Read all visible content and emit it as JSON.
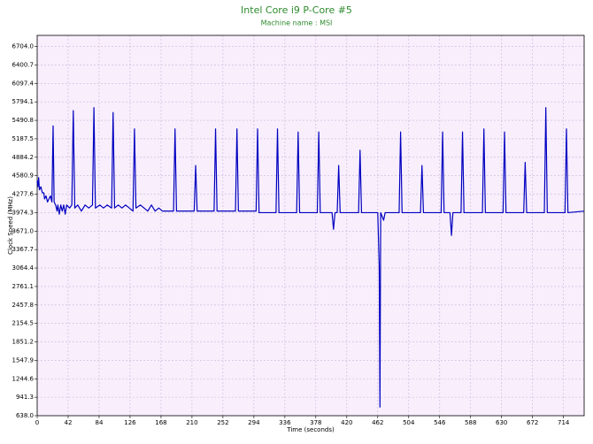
{
  "chart_data": {
    "type": "line",
    "title": "Intel Core i9 P-Core #5",
    "subtitle": "Machine name : MSI",
    "xlabel": "Time (seconds)",
    "ylabel": "Clock Speed (MHz)",
    "grid": true,
    "xlim": [
      0,
      742
    ],
    "ylim": [
      638,
      6887
    ],
    "xticks": [
      0,
      42,
      84,
      126,
      168,
      210,
      252,
      294,
      336,
      378,
      420,
      462,
      504,
      546,
      588,
      630,
      672,
      714
    ],
    "yticks": [
      {
        "value": 638,
        "label": "638.0"
      },
      941.3,
      1244.6,
      1547.9,
      1851.2,
      2154.5,
      2457.8,
      2761.1,
      3064.4,
      3367.7,
      {
        "value": 3671,
        "label": "3671.0"
      },
      3974.3,
      4277.6,
      4580.9,
      4884.2,
      5187.5,
      5490.8,
      5794.1,
      6097.4,
      6400.7,
      {
        "value": 6704,
        "label": "6704.0"
      }
    ],
    "x": [
      0,
      1,
      2,
      3,
      5,
      7,
      9,
      10,
      12,
      14,
      16,
      18,
      20,
      21.6,
      23,
      25,
      27,
      28,
      30,
      32,
      34,
      36,
      38,
      40,
      44,
      47,
      49,
      51,
      55,
      60,
      65,
      70,
      75,
      77,
      79,
      85,
      90,
      95,
      101,
      103,
      105,
      110,
      115,
      120,
      125,
      130,
      132,
      134,
      140,
      145,
      150,
      155,
      160,
      165,
      170,
      185,
      187,
      189,
      213,
      215,
      217,
      240,
      242,
      244,
      269,
      271,
      273,
      297,
      299,
      301,
      324,
      326,
      328,
      352,
      354,
      356,
      380,
      382,
      384,
      400,
      402,
      404,
      407,
      409,
      411,
      436,
      438,
      440,
      462,
      464,
      465,
      466,
      470,
      472,
      491,
      493,
      495,
      520,
      522,
      524,
      548,
      550,
      552,
      560,
      562,
      564,
      575,
      577,
      579,
      604,
      606,
      608,
      632,
      634,
      636,
      660,
      662,
      664,
      688,
      690,
      692,
      716,
      718,
      720,
      742
    ],
    "series": [
      {
        "name": "Clock Speed (MHz)",
        "color": "#0000c0",
        "values": [
          4500,
          4400,
          4550,
          4350,
          4400,
          4300,
          4300,
          4200,
          4250,
          4150,
          4200,
          4250,
          4150,
          5400,
          4150,
          4100,
          4000,
          4100,
          3950,
          4100,
          4000,
          4100,
          3950,
          4100,
          4050,
          4100,
          5650,
          4050,
          4100,
          4000,
          4100,
          4050,
          4100,
          5700,
          4050,
          4100,
          4050,
          4100,
          4050,
          5620,
          4050,
          4100,
          4050,
          4100,
          4050,
          4000,
          5350,
          4050,
          4100,
          4050,
          4000,
          4100,
          4000,
          4050,
          4000,
          4000,
          5350,
          4000,
          4000,
          4750,
          4000,
          4000,
          5350,
          4000,
          4000,
          5350,
          4000,
          4000,
          5350,
          3974,
          3974,
          5350,
          3974,
          3974,
          5300,
          3974,
          3974,
          5300,
          3974,
          3974,
          3700,
          3974,
          3974,
          4750,
          3974,
          3974,
          5000,
          3974,
          3974,
          3100,
          780,
          3974,
          3850,
          3974,
          3974,
          5300,
          3974,
          3974,
          4750,
          3974,
          3974,
          5300,
          3974,
          3974,
          3600,
          3974,
          3974,
          5300,
          3974,
          3974,
          5350,
          3974,
          3974,
          5300,
          3974,
          3974,
          4800,
          3974,
          3974,
          5700,
          3974,
          3974,
          5350,
          3974,
          4000
        ]
      }
    ]
  }
}
